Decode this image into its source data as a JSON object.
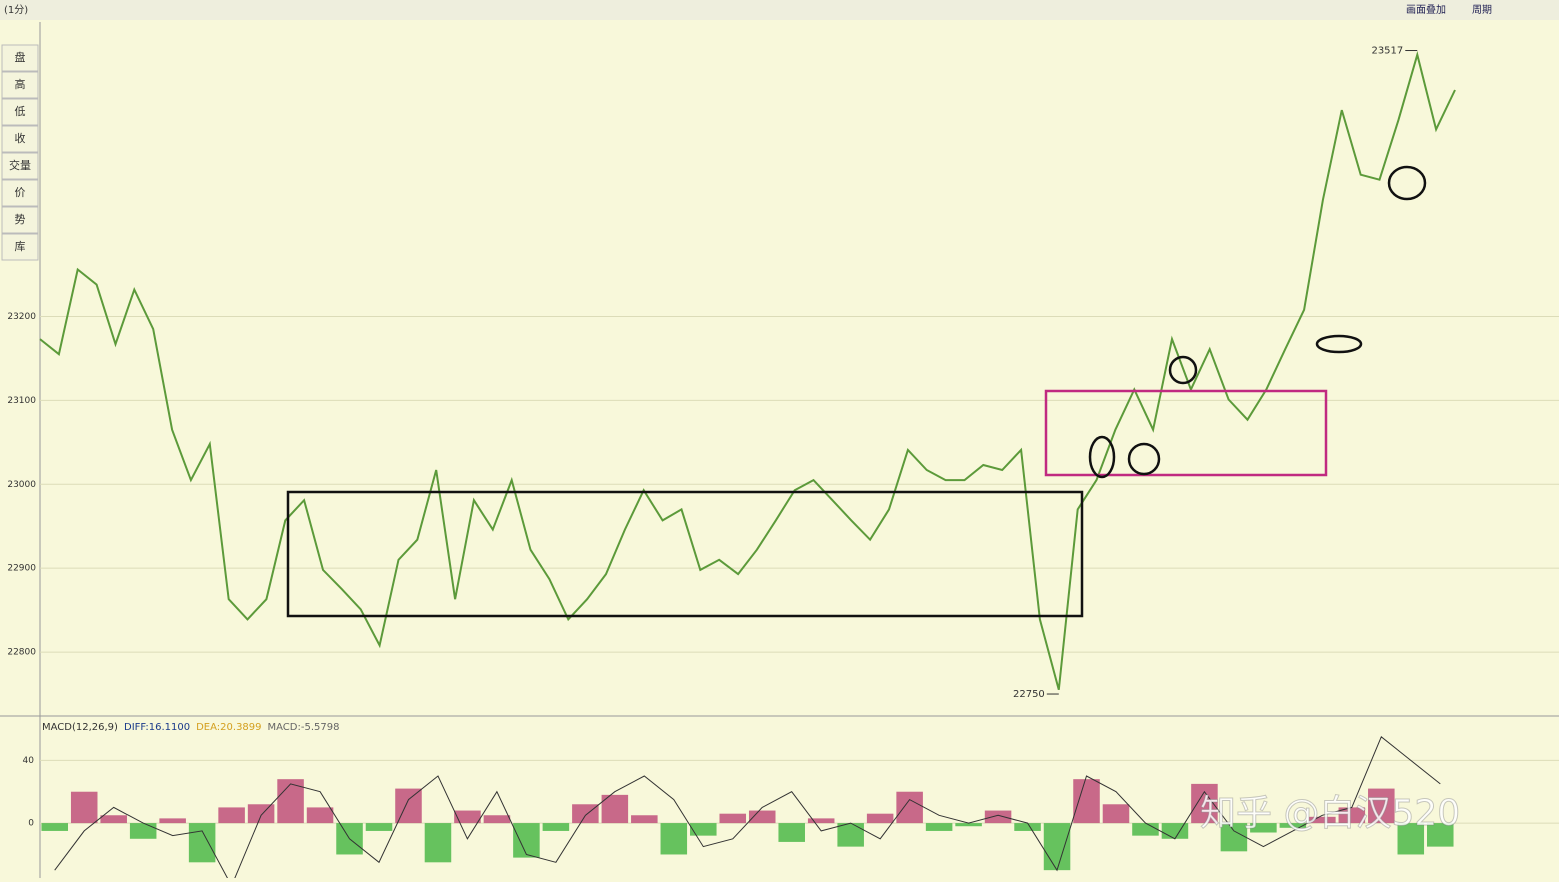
{
  "header": {
    "title": "(1分)",
    "buttons": [
      "画面叠加",
      "周期"
    ]
  },
  "toolbar": [
    "盘",
    "高",
    "低",
    "收",
    "交量",
    "价",
    "势",
    "库"
  ],
  "chart_data": [
    {
      "type": "line",
      "color": "#5c9a3a",
      "ylim": [
        22725,
        23551
      ],
      "yticks": [
        22800,
        22900,
        23000,
        23100,
        23200
      ],
      "grid": true,
      "annotations": [
        {
          "value": 23517,
          "label": "23517"
        },
        {
          "value": 22750,
          "label": "22750"
        }
      ],
      "values": [
        23173,
        23155,
        23256,
        23238,
        23167,
        23232,
        23185,
        23065,
        23005,
        23048,
        22863,
        22839,
        22863,
        22957,
        22981,
        22898,
        22875,
        22851,
        22808,
        22910,
        22934,
        23017,
        22863,
        22981,
        22946,
        23005,
        22922,
        22887,
        22839,
        22863,
        22893,
        22946,
        22993,
        22957,
        22970,
        22898,
        22910,
        22893,
        22922,
        22957,
        22993,
        23005,
        22981,
        22957,
        22934,
        22970,
        23041,
        23017,
        23005,
        23005,
        23023,
        23017,
        23041,
        22839,
        22755,
        22970,
        23005,
        23065,
        23113,
        23065,
        23173,
        23113,
        23161,
        23101,
        23077,
        23113,
        23161,
        23208,
        23339,
        23446,
        23369,
        23363,
        23434,
        23512,
        23423,
        23470
      ]
    },
    {
      "type": "bar",
      "title": "MACD(12,26,9)",
      "indicators": [
        {
          "label": "DIFF:16.1100",
          "color": "#1a3a8a"
        },
        {
          "label": "DEA:20.3899",
          "color": "#d4a020"
        },
        {
          "label": "MACD:-5.5798",
          "color": "#666666"
        }
      ],
      "ylim": [
        -35,
        67
      ],
      "yticks": [
        0,
        40
      ],
      "up_color": "#c0507a",
      "down_color": "#4cb848",
      "line_color": "#333333",
      "values": [
        -5,
        20,
        5,
        -10,
        3,
        -25,
        10,
        12,
        28,
        10,
        -20,
        -5,
        22,
        -25,
        8,
        5,
        -22,
        -5,
        12,
        18,
        5,
        -20,
        -8,
        6,
        8,
        -12,
        3,
        -15,
        6,
        20,
        -5,
        -2,
        8,
        -5,
        -30,
        28,
        12,
        -8,
        -10,
        25,
        -18,
        -6,
        -3,
        4,
        10,
        22,
        -20,
        -15
      ],
      "line_values": [
        -30,
        -5,
        10,
        0,
        -8,
        -5,
        -40,
        5,
        25,
        20,
        -10,
        -25,
        15,
        30,
        -10,
        20,
        -20,
        -25,
        5,
        20,
        30,
        15,
        -15,
        -10,
        10,
        20,
        -5,
        0,
        -10,
        15,
        5,
        0,
        5,
        0,
        -30,
        30,
        20,
        0,
        -10,
        20,
        -5,
        -15,
        -5,
        5,
        10,
        55,
        40,
        25
      ]
    }
  ],
  "watermark": "知乎 @白汉520"
}
